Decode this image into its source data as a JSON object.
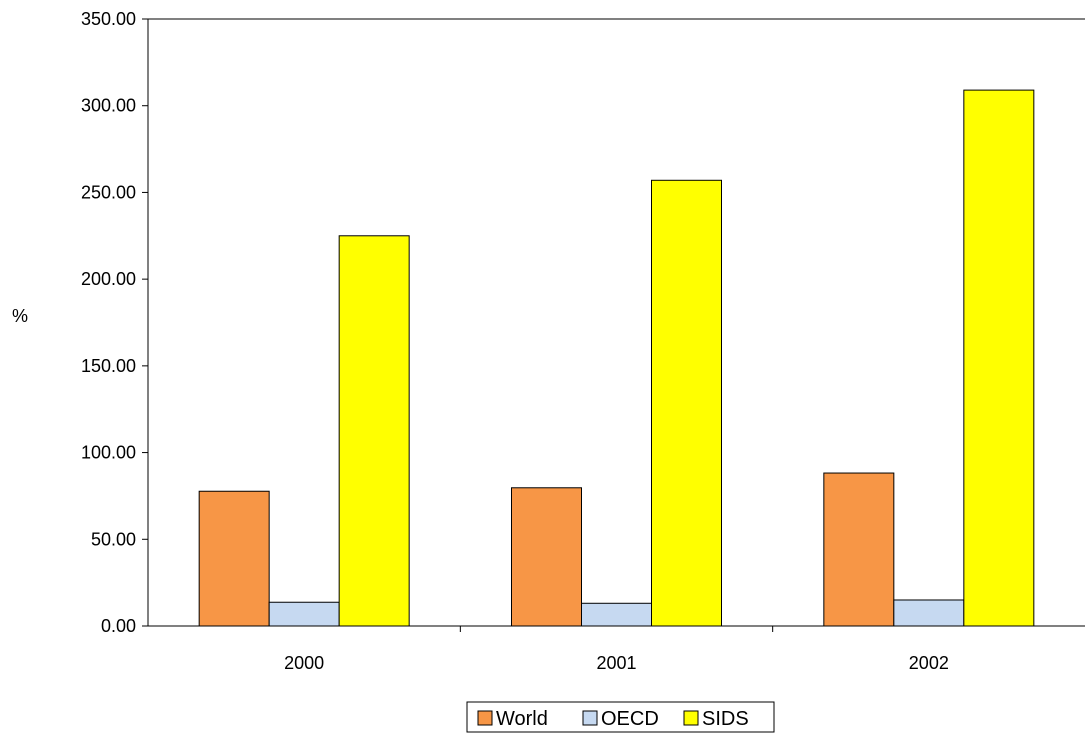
{
  "chart_data": {
    "type": "bar",
    "title": "",
    "xlabel": "",
    "ylabel": "%",
    "categories": [
      "2000",
      "2001",
      "2002"
    ],
    "series": [
      {
        "name": "World",
        "values": [
          77.7,
          79.7,
          88.2
        ],
        "color": "#F79646"
      },
      {
        "name": "OECD",
        "values": [
          13.7,
          13.1,
          15.0
        ],
        "color": "#C6D9F1"
      },
      {
        "name": "SIDS",
        "values": [
          225.0,
          257.0,
          309.0
        ],
        "color": "#FFFF00"
      }
    ],
    "ylim": [
      0,
      350
    ],
    "yticks": [
      "0.00",
      "50.00",
      "100.00",
      "150.00",
      "200.00",
      "250.00",
      "300.00",
      "350.00"
    ],
    "grid": false,
    "legend_position": "bottom"
  }
}
